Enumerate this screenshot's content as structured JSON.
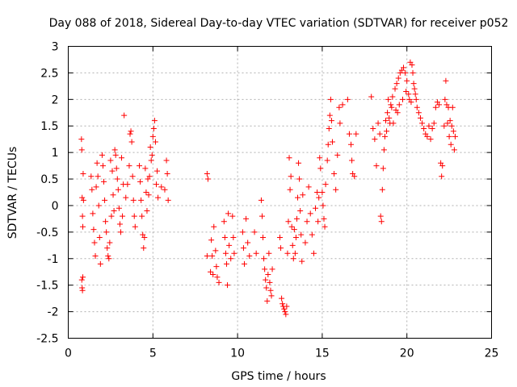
{
  "chart_data": {
    "type": "scatter",
    "title": "Day 088 of 2018, Sidereal Day-to-day VTEC variation (SDTVAR) for receiver p052",
    "xlabel": "GPS time / hours",
    "ylabel": "SDTVAR / TECUs",
    "xlim": [
      0,
      25
    ],
    "ylim": [
      -2.5,
      3
    ],
    "xticks": [
      0,
      5,
      10,
      15,
      20,
      25
    ],
    "yticks": [
      -2.5,
      -2,
      -1.5,
      -1,
      -0.5,
      0,
      0.5,
      1,
      1.5,
      2,
      2.5,
      3
    ],
    "xtick_labels": [
      "0",
      "5",
      "10",
      "15",
      "20",
      "25"
    ],
    "ytick_labels": [
      "-2.5",
      "-2",
      "-1.5",
      "-1",
      "-0.5",
      "0",
      "0.5",
      "1",
      "1.5",
      "2",
      "2.5",
      "3"
    ],
    "grid": true,
    "marker": "+",
    "point_color": "#ff0000",
    "series": [
      {
        "name": "SDTVAR",
        "points": [
          [
            0.78,
            1.25
          ],
          [
            0.8,
            1.05
          ],
          [
            0.82,
            0.15
          ],
          [
            0.84,
            -0.2
          ],
          [
            0.86,
            -0.4
          ],
          [
            0.8,
            -1.4
          ],
          [
            0.82,
            -1.55
          ],
          [
            0.84,
            -1.6
          ],
          [
            0.86,
            -1.35
          ],
          [
            0.88,
            0.6
          ],
          [
            0.9,
            0.1
          ],
          [
            1.35,
            0.55
          ],
          [
            1.4,
            0.3
          ],
          [
            1.45,
            -0.15
          ],
          [
            1.5,
            -0.45
          ],
          [
            1.55,
            -0.7
          ],
          [
            1.6,
            -0.95
          ],
          [
            1.65,
            0.35
          ],
          [
            1.7,
            0.8
          ],
          [
            1.75,
            0.55
          ],
          [
            1.8,
            0.0
          ],
          [
            1.85,
            -0.6
          ],
          [
            1.9,
            -1.1
          ],
          [
            2.0,
            0.95
          ],
          [
            2.05,
            0.75
          ],
          [
            2.1,
            0.45
          ],
          [
            2.15,
            0.1
          ],
          [
            2.2,
            -0.3
          ],
          [
            2.25,
            -0.5
          ],
          [
            2.3,
            -0.8
          ],
          [
            2.35,
            -0.95
          ],
          [
            2.4,
            -1.0
          ],
          [
            2.45,
            -0.7
          ],
          [
            2.5,
            0.85
          ],
          [
            2.55,
            -0.2
          ],
          [
            2.6,
            0.65
          ],
          [
            2.65,
            0.2
          ],
          [
            2.7,
            -0.1
          ],
          [
            2.75,
            1.05
          ],
          [
            2.8,
            0.95
          ],
          [
            2.85,
            0.7
          ],
          [
            2.9,
            0.5
          ],
          [
            2.95,
            0.3
          ],
          [
            3.0,
            -0.05
          ],
          [
            3.05,
            -0.35
          ],
          [
            3.1,
            -0.5
          ],
          [
            3.15,
            0.9
          ],
          [
            3.2,
            -0.2
          ],
          [
            3.25,
            0.4
          ],
          [
            3.3,
            1.7
          ],
          [
            3.4,
            0.15
          ],
          [
            3.5,
            0.4
          ],
          [
            3.6,
            0.75
          ],
          [
            3.65,
            1.35
          ],
          [
            3.7,
            1.4
          ],
          [
            3.75,
            1.2
          ],
          [
            3.8,
            0.55
          ],
          [
            3.85,
            0.1
          ],
          [
            3.9,
            -0.2
          ],
          [
            3.95,
            -0.4
          ],
          [
            4.2,
            0.75
          ],
          [
            4.25,
            0.45
          ],
          [
            4.3,
            0.1
          ],
          [
            4.35,
            -0.2
          ],
          [
            4.4,
            -0.55
          ],
          [
            4.45,
            -0.8
          ],
          [
            4.5,
            -0.6
          ],
          [
            4.55,
            0.7
          ],
          [
            4.6,
            0.25
          ],
          [
            4.65,
            -0.1
          ],
          [
            4.7,
            0.5
          ],
          [
            4.75,
            0.2
          ],
          [
            4.8,
            0.55
          ],
          [
            4.85,
            1.1
          ],
          [
            4.9,
            0.85
          ],
          [
            4.95,
            0.95
          ],
          [
            5.0,
            1.3
          ],
          [
            5.05,
            1.45
          ],
          [
            5.1,
            1.6
          ],
          [
            5.15,
            1.2
          ],
          [
            5.2,
            0.4
          ],
          [
            5.25,
            0.65
          ],
          [
            5.3,
            0.15
          ],
          [
            5.5,
            0.35
          ],
          [
            5.7,
            0.3
          ],
          [
            5.8,
            0.85
          ],
          [
            5.85,
            0.6
          ],
          [
            5.9,
            0.1
          ],
          [
            8.2,
            0.6
          ],
          [
            8.25,
            0.5
          ],
          [
            8.2,
            -0.95
          ],
          [
            8.4,
            -1.25
          ],
          [
            8.45,
            -0.65
          ],
          [
            8.5,
            -0.95
          ],
          [
            8.55,
            -1.3
          ],
          [
            8.6,
            -0.4
          ],
          [
            8.7,
            -0.85
          ],
          [
            8.75,
            -1.15
          ],
          [
            8.8,
            -1.35
          ],
          [
            8.9,
            -1.45
          ],
          [
            9.2,
            -0.3
          ],
          [
            9.25,
            -0.6
          ],
          [
            9.3,
            -0.9
          ],
          [
            9.35,
            -1.1
          ],
          [
            9.4,
            -1.5
          ],
          [
            9.45,
            -0.15
          ],
          [
            9.5,
            -0.75
          ],
          [
            9.6,
            -1.0
          ],
          [
            9.7,
            -0.2
          ],
          [
            9.75,
            -0.6
          ],
          [
            9.8,
            -0.9
          ],
          [
            10.3,
            -0.5
          ],
          [
            10.35,
            -0.8
          ],
          [
            10.4,
            -1.1
          ],
          [
            10.5,
            -0.25
          ],
          [
            10.6,
            -0.7
          ],
          [
            10.7,
            -0.95
          ],
          [
            11.0,
            -0.5
          ],
          [
            11.1,
            -0.9
          ],
          [
            11.4,
            0.1
          ],
          [
            11.45,
            -0.2
          ],
          [
            11.5,
            -0.6
          ],
          [
            11.55,
            -1.0
          ],
          [
            11.6,
            -1.2
          ],
          [
            11.65,
            -1.4
          ],
          [
            11.7,
            -1.55
          ],
          [
            11.75,
            -1.8
          ],
          [
            11.8,
            -1.3
          ],
          [
            11.85,
            -0.9
          ],
          [
            11.9,
            -1.45
          ],
          [
            11.95,
            -1.6
          ],
          [
            12.0,
            -1.7
          ],
          [
            12.05,
            -1.2
          ],
          [
            12.5,
            -0.6
          ],
          [
            12.55,
            -0.8
          ],
          [
            12.6,
            -1.75
          ],
          [
            12.65,
            -1.85
          ],
          [
            12.7,
            -1.9
          ],
          [
            12.75,
            -1.95
          ],
          [
            12.8,
            -2.0
          ],
          [
            12.85,
            -2.05
          ],
          [
            12.9,
            -1.9
          ],
          [
            12.95,
            -0.9
          ],
          [
            13.0,
            -0.3
          ],
          [
            13.05,
            0.9
          ],
          [
            13.1,
            0.3
          ],
          [
            13.15,
            0.55
          ],
          [
            13.2,
            -0.4
          ],
          [
            13.25,
            -0.75
          ],
          [
            13.3,
            -1.0
          ],
          [
            13.35,
            -0.45
          ],
          [
            13.4,
            -0.9
          ],
          [
            13.45,
            -0.6
          ],
          [
            13.5,
            -0.25
          ],
          [
            13.55,
            0.15
          ],
          [
            13.6,
            0.8
          ],
          [
            13.65,
            0.5
          ],
          [
            13.7,
            -0.1
          ],
          [
            13.75,
            -0.55
          ],
          [
            13.8,
            -1.05
          ],
          [
            13.85,
            0.2
          ],
          [
            14.0,
            -0.7
          ],
          [
            14.1,
            -0.3
          ],
          [
            14.2,
            0.35
          ],
          [
            14.3,
            -0.15
          ],
          [
            14.4,
            -0.55
          ],
          [
            14.5,
            -0.9
          ],
          [
            14.6,
            -0.05
          ],
          [
            14.7,
            0.25
          ],
          [
            14.75,
            -0.3
          ],
          [
            14.8,
            0.15
          ],
          [
            14.85,
            0.9
          ],
          [
            14.9,
            0.7
          ],
          [
            15.0,
            0.25
          ],
          [
            15.05,
            0.0
          ],
          [
            15.1,
            -0.25
          ],
          [
            15.15,
            -0.4
          ],
          [
            15.2,
            0.4
          ],
          [
            15.3,
            0.85
          ],
          [
            15.35,
            1.15
          ],
          [
            15.4,
            1.45
          ],
          [
            15.45,
            1.7
          ],
          [
            15.5,
            2.0
          ],
          [
            15.55,
            1.6
          ],
          [
            15.6,
            1.2
          ],
          [
            15.7,
            0.6
          ],
          [
            15.8,
            0.3
          ],
          [
            15.9,
            0.95
          ],
          [
            16.0,
            1.85
          ],
          [
            16.05,
            1.55
          ],
          [
            16.2,
            1.9
          ],
          [
            16.5,
            2.0
          ],
          [
            16.6,
            1.35
          ],
          [
            16.7,
            1.15
          ],
          [
            16.75,
            0.85
          ],
          [
            16.8,
            0.6
          ],
          [
            16.9,
            0.55
          ],
          [
            17.0,
            1.35
          ],
          [
            17.9,
            2.05
          ],
          [
            18.0,
            1.45
          ],
          [
            18.1,
            1.25
          ],
          [
            18.2,
            0.75
          ],
          [
            18.3,
            1.55
          ],
          [
            18.4,
            1.35
          ],
          [
            18.45,
            -0.2
          ],
          [
            18.5,
            -0.3
          ],
          [
            18.55,
            0.3
          ],
          [
            18.6,
            0.7
          ],
          [
            18.65,
            1.05
          ],
          [
            18.7,
            1.3
          ],
          [
            18.75,
            1.6
          ],
          [
            18.8,
            1.4
          ],
          [
            18.85,
            1.75
          ],
          [
            18.9,
            2.0
          ],
          [
            18.95,
            1.65
          ],
          [
            19.0,
            1.55
          ],
          [
            19.05,
            1.9
          ],
          [
            19.1,
            1.85
          ],
          [
            19.15,
            2.05
          ],
          [
            19.2,
            1.55
          ],
          [
            19.3,
            2.2
          ],
          [
            19.35,
            1.8
          ],
          [
            19.4,
            2.3
          ],
          [
            19.45,
            1.75
          ],
          [
            19.5,
            2.4
          ],
          [
            19.55,
            1.9
          ],
          [
            19.6,
            2.5
          ],
          [
            19.7,
            2.55
          ],
          [
            19.75,
            2.0
          ],
          [
            19.8,
            2.6
          ],
          [
            19.9,
            2.5
          ],
          [
            19.95,
            2.15
          ],
          [
            20.0,
            2.35
          ],
          [
            20.1,
            2.1
          ],
          [
            20.15,
            2.0
          ],
          [
            20.2,
            2.7
          ],
          [
            20.25,
            1.95
          ],
          [
            20.3,
            2.65
          ],
          [
            20.35,
            2.5
          ],
          [
            20.4,
            2.3
          ],
          [
            20.45,
            2.2
          ],
          [
            20.5,
            2.1
          ],
          [
            20.55,
            2.0
          ],
          [
            20.6,
            1.85
          ],
          [
            20.7,
            1.75
          ],
          [
            20.8,
            1.65
          ],
          [
            20.9,
            1.55
          ],
          [
            21.0,
            1.45
          ],
          [
            21.1,
            1.35
          ],
          [
            21.2,
            1.3
          ],
          [
            21.3,
            1.5
          ],
          [
            21.4,
            1.25
          ],
          [
            21.5,
            1.45
          ],
          [
            21.6,
            1.55
          ],
          [
            21.7,
            1.85
          ],
          [
            21.8,
            1.95
          ],
          [
            21.9,
            1.9
          ],
          [
            22.0,
            0.8
          ],
          [
            22.05,
            0.55
          ],
          [
            22.1,
            0.75
          ],
          [
            22.2,
            1.5
          ],
          [
            22.25,
            2.0
          ],
          [
            22.3,
            2.35
          ],
          [
            22.35,
            1.9
          ],
          [
            22.4,
            1.55
          ],
          [
            22.45,
            1.85
          ],
          [
            22.5,
            1.3
          ],
          [
            22.55,
            1.6
          ],
          [
            22.6,
            1.15
          ],
          [
            22.65,
            1.5
          ],
          [
            22.7,
            1.85
          ],
          [
            22.75,
            1.4
          ],
          [
            22.8,
            1.05
          ],
          [
            22.85,
            1.3
          ]
        ]
      }
    ]
  }
}
